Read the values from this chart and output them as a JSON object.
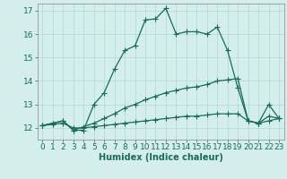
{
  "xlabel": "Humidex (Indice chaleur)",
  "xlim": [
    -0.5,
    23.5
  ],
  "ylim": [
    11.5,
    17.3
  ],
  "xticks": [
    0,
    1,
    2,
    3,
    4,
    5,
    6,
    7,
    8,
    9,
    10,
    11,
    12,
    13,
    14,
    15,
    16,
    17,
    18,
    19,
    20,
    21,
    22,
    23
  ],
  "yticks": [
    12,
    13,
    14,
    15,
    16,
    17
  ],
  "bg_color": "#d4eeeb",
  "grid_color": "#b0d8d2",
  "line_color": "#1a6b5e",
  "line1_x": [
    0,
    1,
    2,
    3,
    4,
    5,
    6,
    7,
    8,
    9,
    10,
    11,
    12,
    13,
    14,
    15,
    16,
    17,
    18,
    19,
    20,
    21,
    22,
    23
  ],
  "line1_y": [
    12.1,
    12.2,
    12.3,
    11.9,
    11.9,
    13.0,
    13.5,
    14.5,
    15.3,
    15.5,
    16.6,
    16.65,
    17.1,
    16.0,
    16.1,
    16.1,
    16.0,
    16.3,
    15.3,
    13.7,
    12.3,
    12.2,
    13.0,
    12.4
  ],
  "line2_x": [
    0,
    1,
    2,
    3,
    4,
    5,
    6,
    7,
    8,
    9,
    10,
    11,
    12,
    13,
    14,
    15,
    16,
    17,
    18,
    19,
    20,
    21,
    22,
    23
  ],
  "line2_y": [
    12.1,
    12.2,
    12.3,
    11.9,
    12.05,
    12.2,
    12.4,
    12.6,
    12.85,
    13.0,
    13.2,
    13.35,
    13.5,
    13.6,
    13.7,
    13.75,
    13.85,
    14.0,
    14.05,
    14.1,
    12.3,
    12.2,
    12.5,
    12.4
  ],
  "line3_x": [
    0,
    1,
    2,
    3,
    4,
    5,
    6,
    7,
    8,
    9,
    10,
    11,
    12,
    13,
    14,
    15,
    16,
    17,
    18,
    19,
    20,
    21,
    22,
    23
  ],
  "line3_y": [
    12.1,
    12.15,
    12.2,
    12.0,
    12.0,
    12.05,
    12.1,
    12.15,
    12.2,
    12.25,
    12.3,
    12.35,
    12.4,
    12.45,
    12.5,
    12.5,
    12.55,
    12.6,
    12.6,
    12.6,
    12.3,
    12.2,
    12.3,
    12.4
  ],
  "tick_fontsize": 6.5,
  "xlabel_fontsize": 7.0,
  "marker_size": 2.5,
  "line_width": 0.9
}
